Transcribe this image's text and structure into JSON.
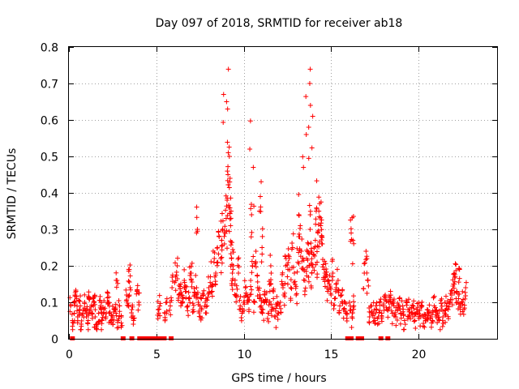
{
  "chart_data": {
    "type": "scatter",
    "title": "Day 097 of 2018, SRMTID for receiver ab18",
    "xlabel": "GPS time / hours",
    "ylabel": "SRMTID / TECUs",
    "xlim": [
      0,
      24.5
    ],
    "ylim": [
      0,
      0.8
    ],
    "xticks": [
      0,
      5,
      10,
      15,
      20
    ],
    "xtick_labels": [
      "0",
      "5",
      "10",
      "15",
      "20"
    ],
    "yticks": [
      0,
      0.1,
      0.2,
      0.3,
      0.4,
      0.5,
      0.6,
      0.7,
      0.8
    ],
    "ytick_labels": [
      "0",
      "0.1",
      "0.2",
      "0.3",
      "0.4",
      "0.5",
      "0.6",
      "0.7",
      "0.8"
    ],
    "grid": true,
    "marker": "+",
    "marker_color": "#ff0000",
    "series": [
      {
        "name": "SRMTID",
        "x": [
          0.1,
          0.2,
          0.3,
          0.4,
          0.5,
          0.6,
          0.7,
          0.8,
          0.9,
          1.0,
          1.1,
          1.2,
          1.3,
          1.4,
          1.5,
          1.6,
          1.7,
          1.8,
          1.9,
          2.0,
          2.1,
          2.2,
          2.3,
          2.4,
          2.5,
          2.6,
          2.7,
          2.8,
          2.9,
          3.0,
          3.3,
          3.4,
          3.5,
          3.6,
          3.7,
          3.9,
          4.0,
          5.1,
          5.2,
          5.5,
          5.6,
          5.8,
          5.9,
          6.1,
          6.2,
          6.3,
          6.4,
          6.5,
          6.6,
          6.7,
          6.8,
          6.9,
          7.0,
          7.1,
          7.2,
          7.3,
          7.4,
          7.5,
          7.6,
          7.7,
          7.8,
          7.9,
          8.0,
          8.1,
          8.2,
          8.3,
          8.4,
          8.5,
          8.6,
          8.7,
          8.8,
          8.9,
          9.0,
          9.05,
          9.1,
          9.15,
          9.2,
          9.25,
          9.3,
          9.35,
          9.4,
          9.5,
          9.6,
          9.7,
          9.8,
          9.9,
          10.0,
          10.1,
          10.2,
          10.3,
          10.4,
          10.5,
          10.6,
          10.7,
          10.8,
          10.9,
          11.0,
          11.1,
          11.2,
          11.3,
          11.4,
          11.5,
          11.6,
          11.7,
          11.8,
          11.9,
          12.0,
          12.1,
          12.2,
          12.3,
          12.4,
          12.5,
          12.6,
          12.7,
          12.8,
          12.9,
          13.0,
          13.1,
          13.2,
          13.3,
          13.4,
          13.5,
          13.6,
          13.7,
          13.75,
          13.8,
          13.85,
          13.9,
          14.0,
          14.1,
          14.2,
          14.3,
          14.4,
          14.5,
          14.6,
          14.7,
          14.8,
          14.9,
          15.0,
          15.1,
          15.2,
          15.3,
          15.4,
          15.5,
          15.6,
          15.7,
          15.8,
          15.9,
          16.1,
          16.2,
          16.3,
          16.9,
          17.0,
          17.1,
          17.2,
          17.3,
          17.4,
          17.5,
          17.6,
          17.7,
          17.8,
          17.9,
          18.0,
          18.1,
          18.2,
          18.3,
          18.4,
          18.5,
          18.6,
          18.7,
          18.8,
          18.9,
          19.0,
          19.1,
          19.2,
          19.3,
          19.4,
          19.5,
          19.6,
          19.7,
          19.8,
          19.9,
          20.0,
          20.1,
          20.2,
          20.3,
          20.4,
          20.5,
          20.6,
          20.7,
          20.8,
          20.9,
          21.0,
          21.1,
          21.2,
          21.3,
          21.4,
          21.5,
          21.6,
          21.7,
          21.8,
          21.9,
          22.0,
          22.1,
          22.2,
          22.3,
          22.4,
          22.5,
          22.6,
          22.7,
          0.35,
          0.65,
          1.15,
          1.45,
          1.85,
          2.25,
          2.75,
          3.45,
          6.45,
          6.95,
          7.35,
          8.75,
          8.85,
          9.02,
          9.08,
          9.12,
          9.18,
          9.22,
          9.28,
          10.35,
          10.45,
          10.55,
          10.95,
          11.05,
          11.55,
          13.15,
          13.42,
          13.58,
          13.72,
          13.78,
          13.82,
          13.95,
          14.15,
          14.25,
          14.45,
          14.65,
          16.15,
          16.25,
          22.05,
          22.35
        ],
        "y": [
          0.09,
          0.05,
          0.07,
          0.13,
          0.06,
          0.08,
          0.04,
          0.07,
          0.1,
          0.06,
          0.05,
          0.08,
          0.07,
          0.09,
          0.06,
          0.04,
          0.07,
          0.09,
          0.05,
          0.08,
          0.06,
          0.1,
          0.07,
          0.05,
          0.06,
          0.08,
          0.07,
          0.05,
          0.09,
          0.06,
          0.12,
          0.09,
          0.14,
          0.08,
          0.05,
          0.13,
          0.1,
          0.08,
          0.09,
          0.07,
          0.1,
          0.09,
          0.14,
          0.17,
          0.2,
          0.12,
          0.15,
          0.1,
          0.16,
          0.13,
          0.09,
          0.11,
          0.18,
          0.08,
          0.12,
          0.14,
          0.1,
          0.09,
          0.08,
          0.12,
          0.1,
          0.09,
          0.14,
          0.17,
          0.13,
          0.21,
          0.18,
          0.25,
          0.28,
          0.22,
          0.3,
          0.26,
          0.33,
          0.38,
          0.45,
          0.36,
          0.43,
          0.31,
          0.22,
          0.18,
          0.2,
          0.15,
          0.12,
          0.18,
          0.09,
          0.07,
          0.1,
          0.14,
          0.12,
          0.08,
          0.16,
          0.2,
          0.1,
          0.24,
          0.14,
          0.11,
          0.09,
          0.08,
          0.12,
          0.1,
          0.07,
          0.13,
          0.08,
          0.11,
          0.06,
          0.09,
          0.07,
          0.1,
          0.15,
          0.12,
          0.2,
          0.17,
          0.22,
          0.14,
          0.25,
          0.18,
          0.12,
          0.21,
          0.28,
          0.24,
          0.19,
          0.16,
          0.22,
          0.26,
          0.2,
          0.3,
          0.24,
          0.18,
          0.23,
          0.27,
          0.21,
          0.35,
          0.31,
          0.26,
          0.19,
          0.17,
          0.13,
          0.15,
          0.12,
          0.18,
          0.11,
          0.14,
          0.16,
          0.09,
          0.12,
          0.08,
          0.1,
          0.07,
          0.09,
          0.06,
          0.09,
          0.18,
          0.24,
          0.16,
          0.06,
          0.09,
          0.07,
          0.05,
          0.08,
          0.06,
          0.1,
          0.07,
          0.09,
          0.12,
          0.08,
          0.1,
          0.13,
          0.07,
          0.09,
          0.06,
          0.08,
          0.11,
          0.07,
          0.09,
          0.05,
          0.1,
          0.08,
          0.06,
          0.07,
          0.09,
          0.05,
          0.08,
          0.07,
          0.06,
          0.09,
          0.06,
          0.05,
          0.08,
          0.07,
          0.06,
          0.05,
          0.09,
          0.06,
          0.07,
          0.05,
          0.08,
          0.06,
          0.07,
          0.09,
          0.08,
          0.1,
          0.12,
          0.15,
          0.17,
          0.13,
          0.11,
          0.09,
          0.1,
          0.08,
          0.14,
          0.12,
          0.09,
          0.11,
          0.1,
          0.08,
          0.1,
          0.16,
          0.19,
          0.12,
          0.18,
          0.3,
          0.27,
          0.67,
          0.65,
          0.63,
          0.51,
          0.5,
          0.44,
          0.35,
          0.52,
          0.34,
          0.47,
          0.39,
          0.25,
          0.2,
          0.34,
          0.47,
          0.56,
          0.58,
          0.7,
          0.64,
          0.61,
          0.35,
          0.29,
          0.28,
          0.18,
          0.29,
          0.27,
          0.15,
          0.19
        ],
        "markers": 0
      }
    ],
    "gap_marks_x": [
      0.2,
      3.1,
      3.6,
      4.05,
      4.25,
      4.45,
      4.65,
      4.85,
      5.05,
      5.25,
      5.45,
      5.85,
      15.95,
      16.15,
      16.55,
      16.75,
      17.85,
      18.25
    ]
  }
}
